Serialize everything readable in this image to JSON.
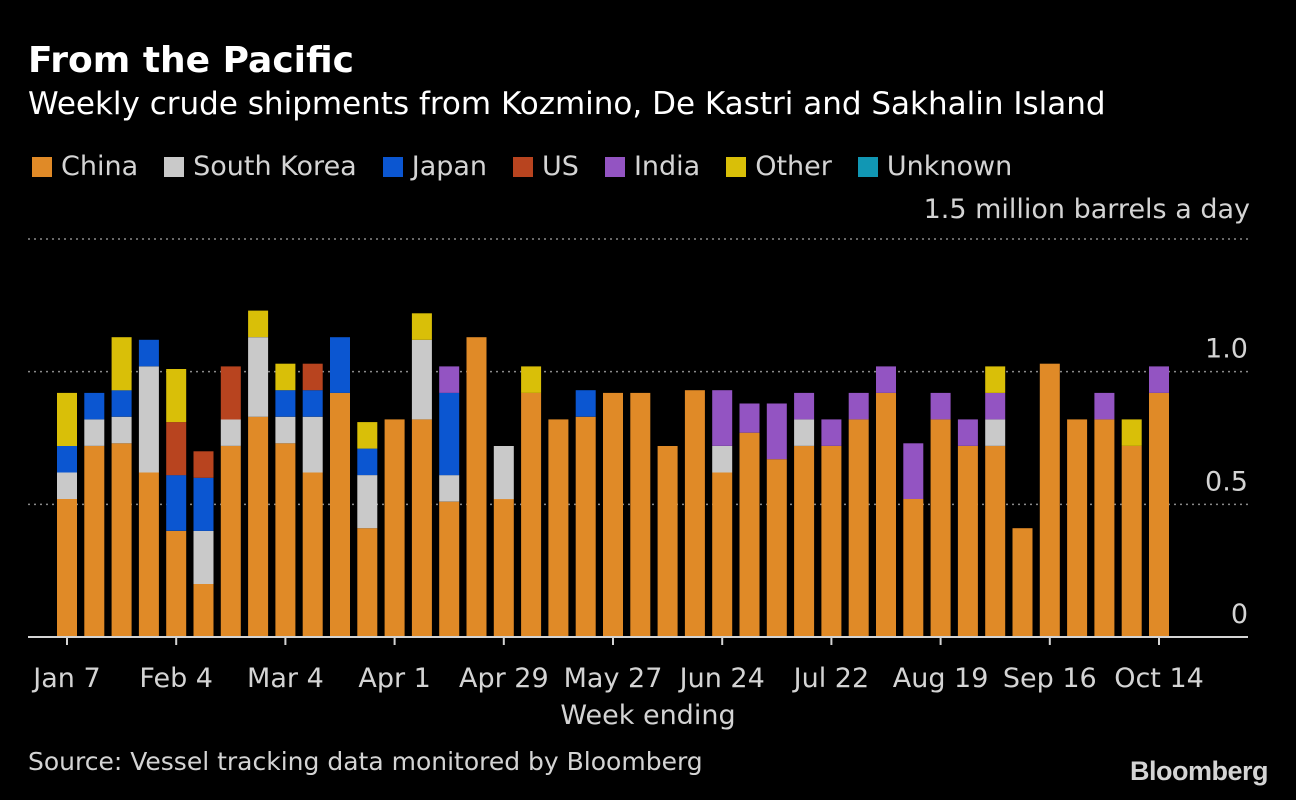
{
  "colors": {
    "China": "#e08a27",
    "South Korea": "#c9c9c9",
    "Japan": "#0b56d1",
    "US": "#b8441f",
    "India": "#9354c2",
    "Other": "#d9bf08",
    "Unknown": "#1197b4",
    "grid": "#8a8a8a",
    "axis": "#d4d4d4",
    "text": "#d4d4d4"
  },
  "brand": "Bloomberg",
  "chart_data": {
    "type": "bar",
    "stacked": true,
    "title": "From the Pacific",
    "subtitle": "Weekly crude shipments from Kozmino, De Kastri and Sakhalin Island",
    "unit_label": "1.5 million barrels a day",
    "xlabel": "Week ending",
    "ylabel": "",
    "source": "Source: Vessel tracking data monitored by Bloomberg",
    "ylim": [
      0,
      1.5
    ],
    "yticks": [
      0,
      0.5,
      1.0
    ],
    "ytick_labels": [
      "0",
      "0.5",
      "1.0"
    ],
    "grid": true,
    "legend_position": "top",
    "legend": [
      "China",
      "South Korea",
      "Japan",
      "US",
      "India",
      "Other",
      "Unknown"
    ],
    "xtick_labels": [
      {
        "index": 0,
        "label": "Jan 7"
      },
      {
        "index": 4,
        "label": "Feb 4"
      },
      {
        "index": 8,
        "label": "Mar 4"
      },
      {
        "index": 12,
        "label": "Apr 1"
      },
      {
        "index": 16,
        "label": "Apr 29"
      },
      {
        "index": 20,
        "label": "May 27"
      },
      {
        "index": 24,
        "label": "Jun 24"
      },
      {
        "index": 28,
        "label": "Jul 22"
      },
      {
        "index": 32,
        "label": "Aug 19"
      },
      {
        "index": 36,
        "label": "Sep 16"
      },
      {
        "index": 40,
        "label": "Oct 14"
      }
    ],
    "categories": [
      "Jan 7",
      "Jan 14",
      "Jan 21",
      "Jan 28",
      "Feb 4",
      "Feb 11",
      "Feb 18",
      "Feb 25",
      "Mar 4",
      "Mar 11",
      "Mar 18",
      "Mar 25",
      "Apr 1",
      "Apr 8",
      "Apr 15",
      "Apr 22",
      "Apr 29",
      "May 6",
      "May 13",
      "May 20",
      "May 27",
      "Jun 3",
      "Jun 10",
      "Jun 17",
      "Jun 24",
      "Jul 1",
      "Jul 8",
      "Jul 15",
      "Jul 22",
      "Jul 29",
      "Aug 5",
      "Aug 12",
      "Aug 19",
      "Aug 26",
      "Sep 2",
      "Sep 9",
      "Sep 16",
      "Sep 23",
      "Sep 30",
      "Oct 7",
      "Oct 14"
    ],
    "series": [
      {
        "name": "China",
        "values": [
          0.52,
          0.72,
          0.73,
          0.62,
          0.4,
          0.2,
          0.72,
          0.83,
          0.73,
          0.62,
          0.92,
          0.41,
          0.82,
          0.82,
          0.51,
          1.13,
          0.52,
          0.92,
          0.82,
          0.83,
          0.92,
          0.92,
          0.72,
          0.93,
          0.62,
          0.77,
          0.67,
          0.72,
          0.72,
          0.82,
          0.92,
          0.52,
          0.82,
          0.72,
          0.72,
          0.41,
          1.03,
          0.82,
          0.82,
          0.72,
          0.92
        ]
      },
      {
        "name": "South Korea",
        "values": [
          0.1,
          0.1,
          0.1,
          0.4,
          0,
          0.2,
          0.1,
          0.3,
          0.1,
          0.21,
          0,
          0.2,
          0,
          0.3,
          0.1,
          0,
          0.2,
          0,
          0,
          0,
          0,
          0,
          0,
          0,
          0.1,
          0,
          0,
          0.1,
          0,
          0,
          0,
          0,
          0,
          0,
          0.1,
          0,
          0,
          0,
          0,
          0,
          0
        ]
      },
      {
        "name": "Japan",
        "values": [
          0.1,
          0.1,
          0.1,
          0.1,
          0.21,
          0.2,
          0,
          0,
          0.1,
          0.1,
          0.21,
          0.1,
          0,
          0,
          0.31,
          0,
          0,
          0,
          0,
          0.1,
          0,
          0,
          0,
          0,
          0,
          0,
          0,
          0,
          0,
          0,
          0,
          0,
          0,
          0,
          0,
          0,
          0,
          0,
          0,
          0,
          0
        ]
      },
      {
        "name": "US",
        "values": [
          0,
          0,
          0,
          0,
          0.2,
          0.1,
          0.2,
          0,
          0,
          0.1,
          0,
          0,
          0,
          0,
          0,
          0,
          0,
          0,
          0,
          0,
          0,
          0,
          0,
          0,
          0,
          0,
          0,
          0,
          0,
          0,
          0,
          0,
          0,
          0,
          0,
          0,
          0,
          0,
          0,
          0,
          0
        ]
      },
      {
        "name": "India",
        "values": [
          0,
          0,
          0,
          0,
          0,
          0,
          0,
          0,
          0,
          0,
          0,
          0,
          0,
          0,
          0.1,
          0,
          0,
          0,
          0,
          0,
          0,
          0,
          0,
          0,
          0.21,
          0.11,
          0.21,
          0.1,
          0.1,
          0.1,
          0.1,
          0.21,
          0.1,
          0.1,
          0.1,
          0,
          0,
          0,
          0.1,
          0,
          0.1
        ]
      },
      {
        "name": "Other",
        "values": [
          0.2,
          0,
          0.2,
          0,
          0.2,
          0,
          0,
          0.1,
          0.1,
          0,
          0,
          0.1,
          0,
          0.1,
          0,
          0,
          0,
          0.1,
          0,
          0,
          0,
          0,
          0,
          0,
          0,
          0,
          0,
          0,
          0,
          0,
          0,
          0,
          0,
          0,
          0.1,
          0,
          0,
          0,
          0,
          0.1,
          0
        ]
      },
      {
        "name": "Unknown",
        "values": [
          0,
          0,
          0,
          0,
          0,
          0,
          0,
          0,
          0,
          0,
          0,
          0,
          0,
          0,
          0,
          0,
          0,
          0,
          0,
          0,
          0,
          0,
          0,
          0,
          0,
          0,
          0,
          0,
          0,
          0,
          0,
          0,
          0,
          0,
          0,
          0,
          0,
          0,
          0,
          0,
          0
        ]
      }
    ]
  }
}
